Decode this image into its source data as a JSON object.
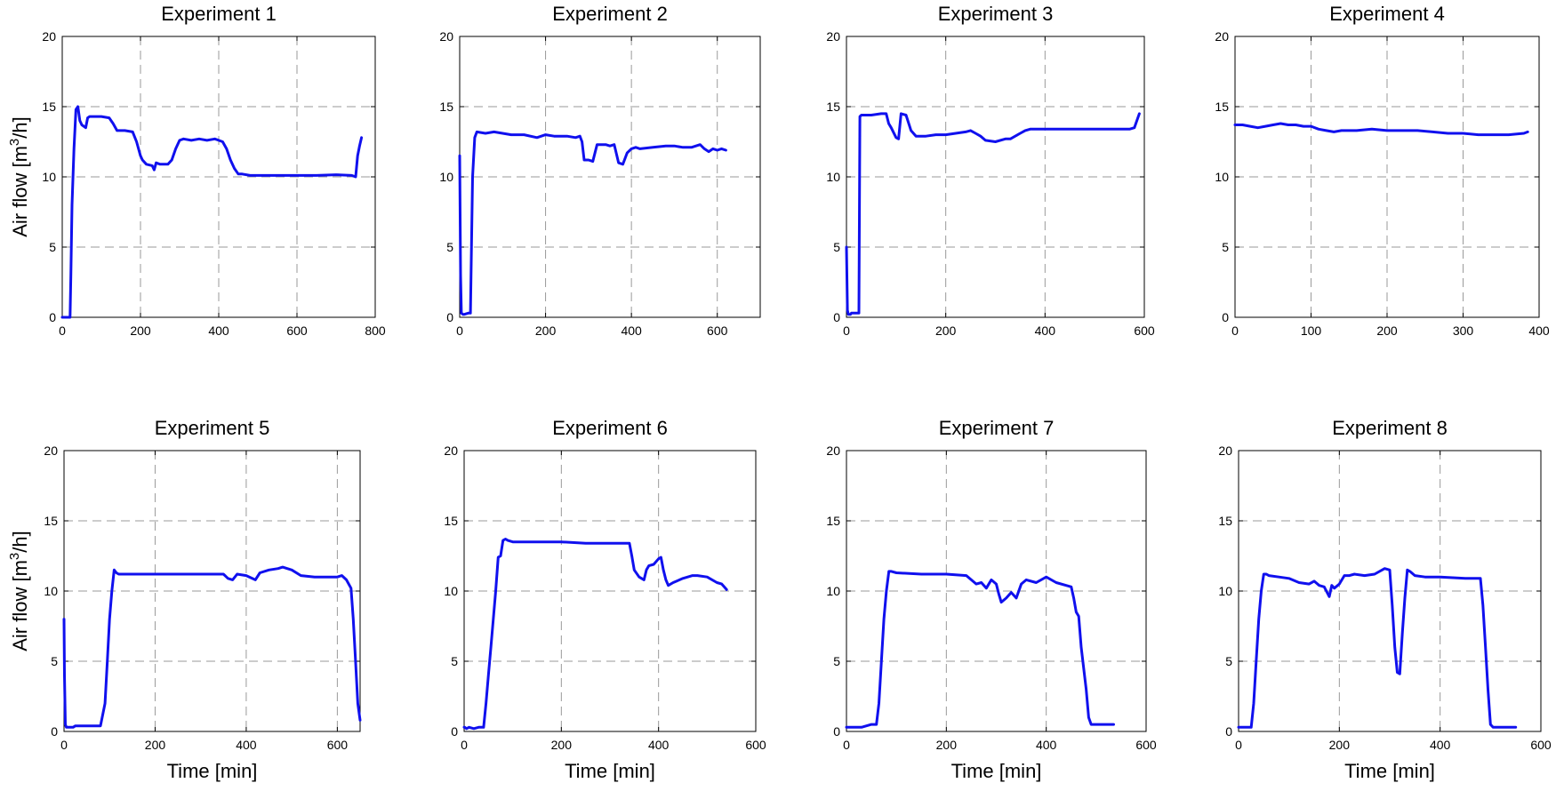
{
  "figure": {
    "series_color": "#1010ee",
    "grid": true,
    "grid_style": "dashed"
  },
  "chart_data": [
    {
      "type": "line",
      "title": "Experiment 1",
      "ylabel_text": "Air flow [m",
      "ylabel_sup": "3",
      "ylabel_tail": "/h]",
      "xlabel": "",
      "xlim": [
        0,
        800
      ],
      "ylim": [
        0,
        20
      ],
      "xticks": [
        0,
        200,
        400,
        600,
        800
      ],
      "yticks": [
        0,
        5,
        10,
        15,
        20
      ],
      "series": [
        {
          "x": [
            0,
            20,
            22,
            25,
            30,
            35,
            40,
            45,
            50,
            60,
            65,
            70,
            80,
            100,
            120,
            130,
            140,
            160,
            180,
            190,
            200,
            205,
            215,
            230,
            235,
            240,
            250,
            270,
            280,
            290,
            300,
            310,
            330,
            350,
            370,
            390,
            400,
            410,
            420,
            430,
            440,
            450,
            460,
            480,
            500,
            550,
            600,
            650,
            700,
            740,
            750,
            755,
            760,
            765
          ],
          "y": [
            0,
            0,
            3,
            8,
            12,
            14.8,
            15,
            14,
            13.7,
            13.5,
            14.2,
            14.3,
            14.3,
            14.3,
            14.2,
            13.8,
            13.3,
            13.3,
            13.2,
            12.5,
            11.5,
            11.2,
            10.9,
            10.8,
            10.5,
            11,
            10.9,
            10.9,
            11.2,
            12,
            12.6,
            12.7,
            12.6,
            12.7,
            12.6,
            12.7,
            12.6,
            12.5,
            12,
            11.2,
            10.6,
            10.2,
            10.2,
            10.1,
            10.1,
            10.1,
            10.1,
            10.1,
            10.15,
            10.1,
            10.0,
            11.5,
            12.2,
            12.8
          ]
        }
      ]
    },
    {
      "type": "line",
      "title": "Experiment 2",
      "xlabel": "",
      "xlim": [
        0,
        700
      ],
      "ylim": [
        0,
        20
      ],
      "xticks": [
        0,
        200,
        400,
        600
      ],
      "yticks": [
        0,
        5,
        10,
        15,
        20
      ],
      "series": [
        {
          "x": [
            0,
            2,
            4,
            8,
            10,
            20,
            25,
            28,
            30,
            35,
            40,
            60,
            80,
            100,
            120,
            150,
            180,
            200,
            220,
            250,
            270,
            280,
            285,
            290,
            300,
            310,
            320,
            340,
            350,
            360,
            370,
            380,
            390,
            400,
            410,
            420,
            450,
            480,
            500,
            520,
            540,
            560,
            570,
            580,
            590,
            600,
            610,
            620
          ],
          "y": [
            11.5,
            3,
            0.3,
            0.2,
            0.2,
            0.3,
            0.3,
            6,
            10,
            12.8,
            13.2,
            13.1,
            13.2,
            13.1,
            13.0,
            13.0,
            12.8,
            13.0,
            12.9,
            12.9,
            12.8,
            12.9,
            12.5,
            11.2,
            11.2,
            11.1,
            12.3,
            12.3,
            12.2,
            12.3,
            11.0,
            10.9,
            11.7,
            12.0,
            12.1,
            12.0,
            12.1,
            12.2,
            12.2,
            12.1,
            12.1,
            12.3,
            12.0,
            11.8,
            12.0,
            11.9,
            12.0,
            11.9
          ]
        }
      ]
    },
    {
      "type": "line",
      "title": "Experiment 3",
      "xlabel": "",
      "xlim": [
        0,
        600
      ],
      "ylim": [
        0,
        20
      ],
      "xticks": [
        0,
        200,
        400,
        600
      ],
      "yticks": [
        0,
        5,
        10,
        15,
        20
      ],
      "series": [
        {
          "x": [
            0,
            2,
            4,
            8,
            10,
            20,
            25,
            27,
            30,
            50,
            70,
            80,
            85,
            90,
            100,
            105,
            110,
            120,
            130,
            140,
            160,
            180,
            200,
            220,
            240,
            250,
            260,
            270,
            280,
            300,
            320,
            330,
            350,
            360,
            370,
            400,
            450,
            500,
            550,
            570,
            580,
            585,
            590
          ],
          "y": [
            5,
            0.5,
            0.2,
            0.2,
            0.3,
            0.3,
            0.3,
            14.3,
            14.4,
            14.4,
            14.5,
            14.5,
            13.8,
            13.5,
            12.8,
            12.7,
            14.5,
            14.4,
            13.3,
            12.9,
            12.9,
            13.0,
            13.0,
            13.1,
            13.2,
            13.3,
            13.1,
            12.9,
            12.6,
            12.5,
            12.7,
            12.7,
            13.1,
            13.3,
            13.4,
            13.4,
            13.4,
            13.4,
            13.4,
            13.4,
            13.5,
            14.0,
            14.5
          ]
        }
      ]
    },
    {
      "type": "line",
      "title": "Experiment 4",
      "xlabel": "",
      "xlim": [
        0,
        400
      ],
      "ylim": [
        0,
        20
      ],
      "xticks": [
        0,
        100,
        200,
        300,
        400
      ],
      "yticks": [
        0,
        5,
        10,
        15,
        20
      ],
      "series": [
        {
          "x": [
            0,
            10,
            20,
            30,
            40,
            50,
            60,
            70,
            80,
            90,
            100,
            110,
            120,
            130,
            140,
            150,
            160,
            180,
            200,
            220,
            240,
            260,
            280,
            300,
            320,
            340,
            360,
            380,
            385
          ],
          "y": [
            13.7,
            13.7,
            13.6,
            13.5,
            13.6,
            13.7,
            13.8,
            13.7,
            13.7,
            13.6,
            13.6,
            13.4,
            13.3,
            13.2,
            13.3,
            13.3,
            13.3,
            13.4,
            13.3,
            13.3,
            13.3,
            13.2,
            13.1,
            13.1,
            13.0,
            13.0,
            13.0,
            13.1,
            13.2
          ]
        }
      ]
    },
    {
      "type": "line",
      "title": "Experiment 5",
      "ylabel_text": "Air flow [m",
      "ylabel_sup": "3",
      "ylabel_tail": "/h]",
      "xlabel": "Time [min]",
      "xlim": [
        0,
        650
      ],
      "ylim": [
        0,
        20
      ],
      "xticks": [
        0,
        200,
        400,
        600
      ],
      "yticks": [
        0,
        5,
        10,
        15,
        20
      ],
      "series": [
        {
          "x": [
            0,
            1,
            3,
            5,
            10,
            20,
            25,
            30,
            50,
            80,
            90,
            95,
            100,
            105,
            110,
            115,
            120,
            150,
            200,
            250,
            300,
            350,
            360,
            370,
            380,
            400,
            420,
            430,
            450,
            470,
            480,
            500,
            520,
            550,
            600,
            610,
            620,
            625,
            630,
            635,
            640,
            645,
            650
          ],
          "y": [
            8,
            4,
            0.5,
            0.3,
            0.3,
            0.3,
            0.4,
            0.4,
            0.4,
            0.4,
            2,
            5,
            8,
            10,
            11.5,
            11.3,
            11.2,
            11.2,
            11.2,
            11.2,
            11.2,
            11.2,
            10.9,
            10.8,
            11.2,
            11.1,
            10.8,
            11.3,
            11.5,
            11.6,
            11.7,
            11.5,
            11.1,
            11.0,
            11.0,
            11.1,
            10.8,
            10.5,
            10.2,
            8,
            5,
            2,
            0.8
          ]
        }
      ]
    },
    {
      "type": "line",
      "title": "Experiment 6",
      "xlabel": "Time [min]",
      "xlim": [
        0,
        600
      ],
      "ylim": [
        0,
        20
      ],
      "xticks": [
        0,
        200,
        400,
        600
      ],
      "yticks": [
        0,
        5,
        10,
        15,
        20
      ],
      "series": [
        {
          "x": [
            0,
            1,
            5,
            10,
            20,
            30,
            40,
            45,
            50,
            55,
            60,
            65,
            70,
            75,
            80,
            85,
            90,
            100,
            150,
            200,
            250,
            300,
            340,
            345,
            350,
            360,
            370,
            375,
            380,
            390,
            400,
            405,
            410,
            415,
            420,
            430,
            450,
            470,
            480,
            500,
            520,
            530,
            535,
            540
          ],
          "y": [
            0.3,
            0.3,
            0.2,
            0.3,
            0.2,
            0.3,
            0.3,
            2,
            4,
            6,
            8,
            10,
            12.4,
            12.5,
            13.6,
            13.7,
            13.6,
            13.5,
            13.5,
            13.5,
            13.4,
            13.4,
            13.4,
            12.5,
            11.5,
            11.0,
            10.8,
            11.5,
            11.8,
            11.9,
            12.3,
            12.4,
            11.5,
            10.8,
            10.4,
            10.6,
            10.9,
            11.1,
            11.1,
            11.0,
            10.6,
            10.5,
            10.3,
            10.1
          ]
        }
      ]
    },
    {
      "type": "line",
      "title": "Experiment 7",
      "xlabel": "Time [min]",
      "xlim": [
        0,
        600
      ],
      "ylim": [
        0,
        20
      ],
      "xticks": [
        0,
        200,
        400,
        600
      ],
      "yticks": [
        0,
        5,
        10,
        15,
        20
      ],
      "series": [
        {
          "x": [
            0,
            5,
            10,
            20,
            30,
            40,
            50,
            60,
            65,
            70,
            75,
            80,
            85,
            90,
            100,
            150,
            200,
            240,
            250,
            260,
            270,
            280,
            290,
            300,
            305,
            310,
            320,
            330,
            340,
            350,
            360,
            380,
            400,
            420,
            440,
            450,
            455,
            460,
            465,
            470,
            475,
            480,
            485,
            490,
            500,
            520,
            535
          ],
          "y": [
            0.3,
            0.3,
            0.3,
            0.3,
            0.3,
            0.4,
            0.5,
            0.5,
            2,
            5,
            8,
            10,
            11.4,
            11.4,
            11.3,
            11.2,
            11.2,
            11.1,
            10.8,
            10.5,
            10.6,
            10.2,
            10.8,
            10.5,
            9.8,
            9.2,
            9.5,
            9.9,
            9.5,
            10.5,
            10.8,
            10.6,
            11.0,
            10.6,
            10.4,
            10.3,
            9.5,
            8.5,
            8.2,
            6,
            4.5,
            3,
            1,
            0.5,
            0.5,
            0.5,
            0.5
          ]
        }
      ]
    },
    {
      "type": "line",
      "title": "Experiment 8",
      "xlabel": "Time [min]",
      "xlim": [
        0,
        600
      ],
      "ylim": [
        0,
        20
      ],
      "xticks": [
        0,
        200,
        400,
        600
      ],
      "yticks": [
        0,
        5,
        10,
        15,
        20
      ],
      "series": [
        {
          "x": [
            0,
            5,
            10,
            20,
            25,
            30,
            35,
            40,
            45,
            50,
            55,
            60,
            80,
            100,
            120,
            140,
            150,
            160,
            170,
            180,
            185,
            190,
            200,
            210,
            220,
            230,
            250,
            270,
            290,
            300,
            305,
            310,
            315,
            320,
            325,
            330,
            335,
            340,
            350,
            370,
            400,
            450,
            480,
            485,
            490,
            495,
            500,
            505,
            510,
            530,
            550
          ],
          "y": [
            0.3,
            0.3,
            0.3,
            0.3,
            0.3,
            2,
            5,
            8,
            10,
            11.2,
            11.2,
            11.1,
            11.0,
            10.9,
            10.6,
            10.5,
            10.7,
            10.4,
            10.3,
            9.6,
            10.4,
            10.2,
            10.5,
            11.1,
            11.1,
            11.2,
            11.1,
            11.2,
            11.6,
            11.5,
            9,
            6,
            4.2,
            4.1,
            7,
            9.5,
            11.5,
            11.4,
            11.1,
            11.0,
            11.0,
            10.9,
            10.9,
            9,
            6,
            3,
            0.5,
            0.3,
            0.3,
            0.3,
            0.3
          ]
        }
      ]
    }
  ]
}
